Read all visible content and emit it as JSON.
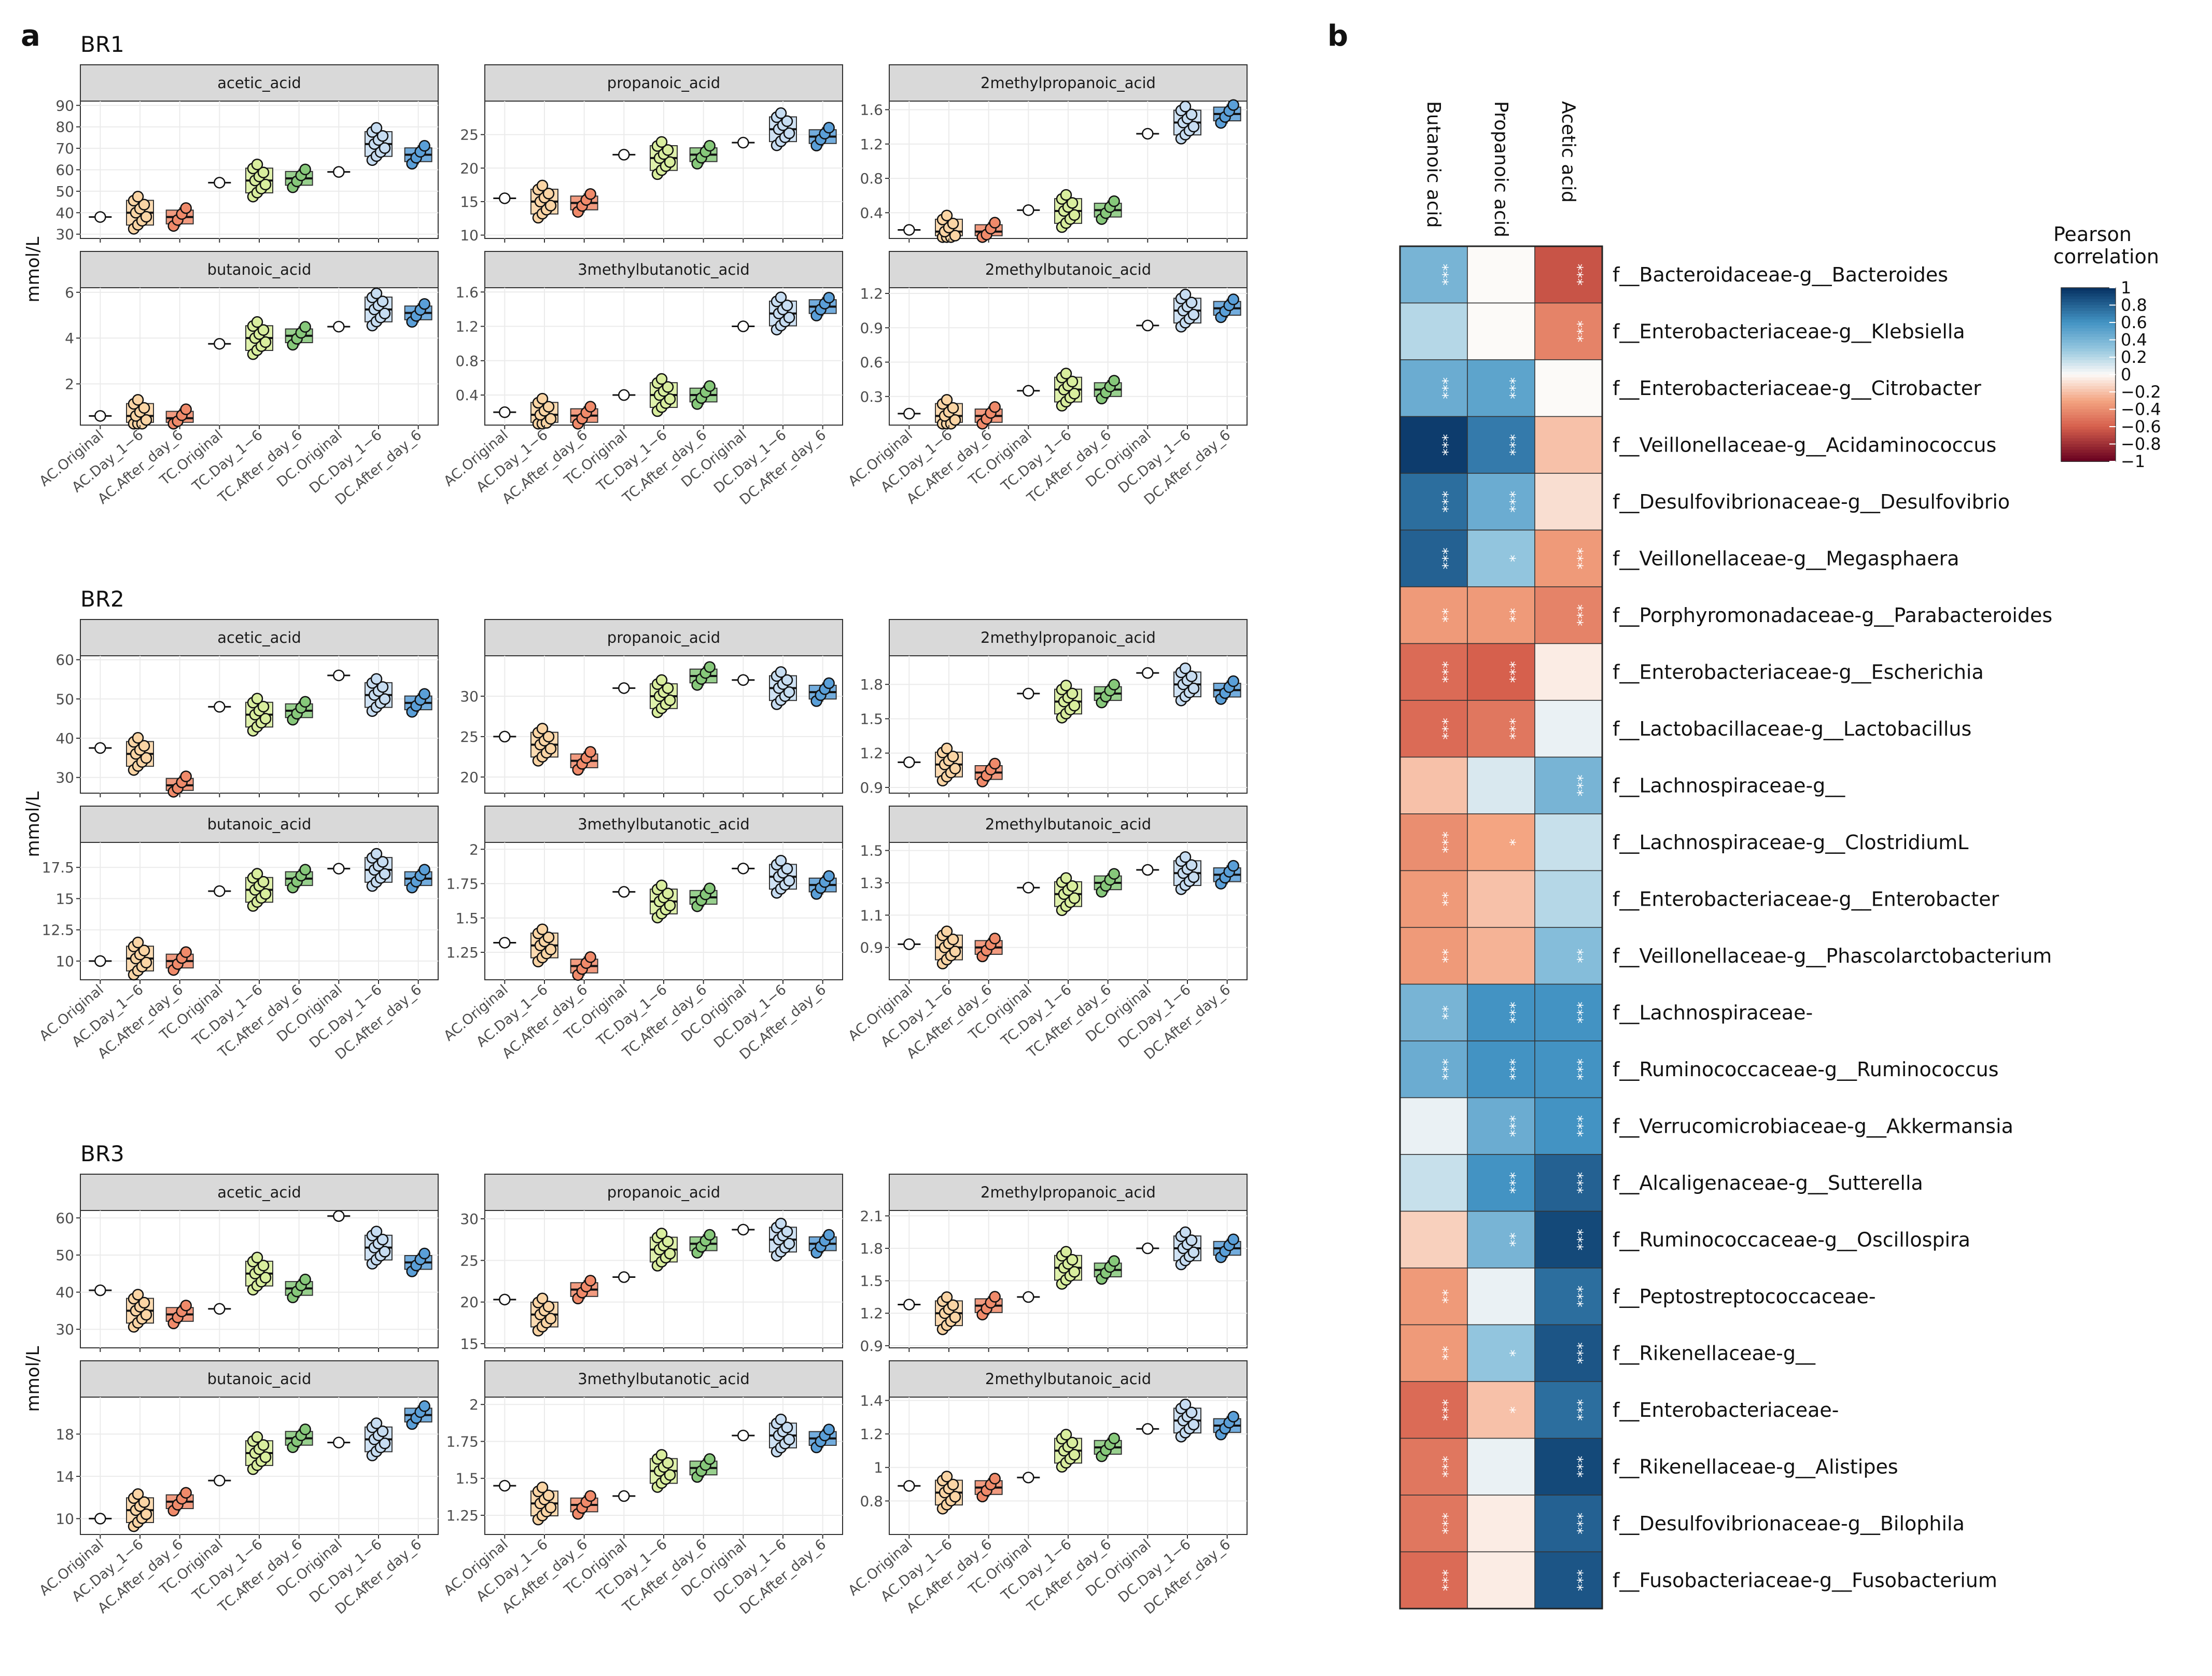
{
  "panel_labels": {
    "a": "a",
    "b": "b"
  },
  "y_axis_label": "mmol/L",
  "x_categories": [
    "AC.Original",
    "AC.Day_1−6",
    "AC.After_day_6",
    "TC.Original",
    "TC.Day_1−6",
    "TC.After_day_6",
    "DC.Original",
    "DC.Day_1−6",
    "DC.After_day_6"
  ],
  "group_colors": [
    "#ffffff",
    "#fbd5a5",
    "#f08a6a",
    "#ffffff",
    "#d9ee9e",
    "#86c87a",
    "#ffffff",
    "#c7ddf2",
    "#5a9fd8"
  ],
  "chart_data": [
    {
      "type": "box",
      "title": "BR1",
      "ylabel": "mmol/L",
      "facets": [
        {
          "name": "acetic_acid",
          "ylim": [
            28,
            92
          ],
          "yticks": [
            30,
            40,
            50,
            60,
            70,
            80,
            90
          ],
          "medians": [
            38,
            40,
            38,
            54,
            55,
            56,
            59,
            72,
            67
          ]
        },
        {
          "name": "propanoic_acid",
          "ylim": [
            9.5,
            30
          ],
          "yticks": [
            10,
            15,
            20,
            25
          ],
          "medians": [
            15.5,
            15,
            14.8,
            22,
            21.5,
            22,
            23.8,
            25.8,
            24.7
          ]
        },
        {
          "name": "2methylpropanoic_acid",
          "ylim": [
            0.1,
            1.7
          ],
          "yticks": [
            0.4,
            0.8,
            1.2,
            1.6
          ],
          "medians": [
            0.2,
            0.18,
            0.18,
            0.43,
            0.42,
            0.43,
            1.32,
            1.45,
            1.55
          ]
        },
        {
          "name": "butanoic_acid",
          "ylim": [
            0.2,
            6.2
          ],
          "yticks": [
            2,
            4,
            6
          ],
          "medians": [
            0.6,
            0.6,
            0.5,
            3.75,
            4.0,
            4.1,
            4.5,
            5.25,
            5.1
          ]
        },
        {
          "name": "3methylbutanotic_acid",
          "ylim": [
            0.05,
            1.65
          ],
          "yticks": [
            0.4,
            0.8,
            1.2,
            1.6
          ],
          "medians": [
            0.2,
            0.17,
            0.16,
            0.4,
            0.4,
            0.4,
            1.2,
            1.35,
            1.43
          ]
        },
        {
          "name": "2methylbutanoic_acid",
          "ylim": [
            0.05,
            1.25
          ],
          "yticks": [
            0.3,
            0.6,
            0.9,
            1.2
          ],
          "medians": [
            0.15,
            0.13,
            0.13,
            0.35,
            0.36,
            0.36,
            0.92,
            1.05,
            1.07
          ]
        }
      ]
    },
    {
      "type": "box",
      "title": "BR2",
      "ylabel": "mmol/L",
      "facets": [
        {
          "name": "acetic_acid",
          "ylim": [
            26,
            61
          ],
          "yticks": [
            30,
            40,
            50,
            60
          ],
          "medians": [
            37.5,
            36,
            28,
            48,
            46,
            47,
            56,
            51,
            49
          ]
        },
        {
          "name": "propanoic_acid",
          "ylim": [
            18,
            35
          ],
          "yticks": [
            20,
            25,
            30
          ],
          "medians": [
            25,
            24,
            22,
            31,
            30,
            32.5,
            32,
            31,
            30.5
          ]
        },
        {
          "name": "2methylpropanoic_acid",
          "ylim": [
            0.85,
            2.05
          ],
          "yticks": [
            0.9,
            1.2,
            1.5,
            1.8
          ],
          "medians": [
            1.12,
            1.1,
            1.03,
            1.72,
            1.65,
            1.72,
            1.9,
            1.8,
            1.75
          ]
        },
        {
          "name": "butanoic_acid",
          "ylim": [
            8.5,
            19.5
          ],
          "yticks": [
            10.0,
            12.5,
            15.0,
            17.5
          ],
          "medians": [
            10,
            10.2,
            10,
            15.6,
            15.7,
            16.6,
            17.4,
            17.3,
            16.6
          ]
        },
        {
          "name": "3methylbutanotic_acid",
          "ylim": [
            1.05,
            2.05
          ],
          "yticks": [
            1.25,
            1.5,
            1.75,
            2.0
          ],
          "medians": [
            1.32,
            1.3,
            1.15,
            1.69,
            1.62,
            1.65,
            1.86,
            1.8,
            1.74
          ]
        },
        {
          "name": "2methylbutanoic_acid",
          "ylim": [
            0.7,
            1.55
          ],
          "yticks": [
            0.9,
            1.1,
            1.3,
            1.5
          ],
          "medians": [
            0.92,
            0.9,
            0.9,
            1.27,
            1.23,
            1.3,
            1.38,
            1.36,
            1.35
          ]
        }
      ]
    },
    {
      "type": "box",
      "title": "BR3",
      "ylabel": "mmol/L",
      "facets": [
        {
          "name": "acetic_acid",
          "ylim": [
            25,
            62
          ],
          "yticks": [
            30,
            40,
            50,
            60
          ],
          "medians": [
            40.5,
            35,
            34,
            35.5,
            45,
            41,
            60.5,
            52,
            48
          ]
        },
        {
          "name": "propanoic_acid",
          "ylim": [
            14.5,
            31
          ],
          "yticks": [
            15,
            20,
            25,
            30
          ],
          "medians": [
            20.3,
            18.5,
            21.5,
            23,
            26.3,
            27,
            28.7,
            27.5,
            27
          ]
        },
        {
          "name": "2methylpropanoic_acid",
          "ylim": [
            0.88,
            2.15
          ],
          "yticks": [
            0.9,
            1.2,
            1.5,
            1.8,
            2.1
          ],
          "medians": [
            1.28,
            1.2,
            1.27,
            1.35,
            1.62,
            1.6,
            1.8,
            1.8,
            1.8
          ]
        },
        {
          "name": "butanoic_acid",
          "ylim": [
            8.5,
            21.5
          ],
          "yticks": [
            10,
            14,
            18
          ],
          "medians": [
            10,
            10.8,
            11.6,
            13.6,
            16.2,
            17.6,
            17.2,
            17.5,
            19.8
          ]
        },
        {
          "name": "3methylbutanotic_acid",
          "ylim": [
            1.12,
            2.05
          ],
          "yticks": [
            1.25,
            1.5,
            1.75,
            2.0
          ],
          "medians": [
            1.45,
            1.33,
            1.32,
            1.38,
            1.55,
            1.57,
            1.79,
            1.79,
            1.77
          ]
        },
        {
          "name": "2methylbutanoic_acid",
          "ylim": [
            0.6,
            1.42
          ],
          "yticks": [
            0.8,
            1.0,
            1.2,
            1.4
          ],
          "medians": [
            0.89,
            0.85,
            0.88,
            0.94,
            1.1,
            1.12,
            1.23,
            1.28,
            1.25
          ]
        }
      ]
    },
    {
      "type": "heatmap",
      "columns": [
        "Butanoic acid",
        "Propanoic acid",
        "Acetic acid"
      ],
      "rows": [
        {
          "label": "f__Bacteroidaceae-g__Bacteroides",
          "values": [
            0.4,
            0.0,
            -0.65
          ],
          "stars": [
            "***",
            "",
            "***"
          ]
        },
        {
          "label": "f__Enterobacteriaceae-g__Klebsiella",
          "values": [
            0.2,
            0.0,
            -0.45
          ],
          "stars": [
            "",
            "",
            "***"
          ]
        },
        {
          "label": "f__Enterobacteriaceae-g__Citrobacter",
          "values": [
            0.45,
            0.5,
            0.0
          ],
          "stars": [
            "***",
            "***",
            ""
          ]
        },
        {
          "label": "f__Veillonellaceae-g__Acidaminococcus",
          "values": [
            0.95,
            0.7,
            -0.2
          ],
          "stars": [
            "***",
            "***",
            ""
          ]
        },
        {
          "label": "f__Desulfovibrionaceae-g__Desulfovibrio",
          "values": [
            0.75,
            0.45,
            -0.1
          ],
          "stars": [
            "***",
            "***",
            ""
          ]
        },
        {
          "label": "f__Veillonellaceae-g__Megasphaera",
          "values": [
            0.8,
            0.3,
            -0.35
          ],
          "stars": [
            "***",
            "*",
            "***"
          ]
        },
        {
          "label": "f__Porphyromonadaceae-g__Parabacteroides",
          "values": [
            -0.35,
            -0.35,
            -0.45
          ],
          "stars": [
            "**",
            "**",
            "***"
          ]
        },
        {
          "label": "f__Enterobacteriaceae-g__Escherichia",
          "values": [
            -0.55,
            -0.6,
            -0.05
          ],
          "stars": [
            "***",
            "***",
            ""
          ]
        },
        {
          "label": "f__Lactobacillaceae-g__Lactobacillus",
          "values": [
            -0.55,
            -0.5,
            0.05
          ],
          "stars": [
            "***",
            "***",
            ""
          ]
        },
        {
          "label": "f__Lachnospiraceae-g__",
          "values": [
            -0.2,
            0.1,
            0.4
          ],
          "stars": [
            "",
            "",
            "***"
          ]
        },
        {
          "label": "f__Lachnospiraceae-g__ClostridiumL",
          "values": [
            -0.4,
            -0.3,
            0.15
          ],
          "stars": [
            "***",
            "*",
            ""
          ]
        },
        {
          "label": "f__Enterobacteriaceae-g__Enterobacter",
          "values": [
            -0.35,
            -0.2,
            0.2
          ],
          "stars": [
            "**",
            "",
            ""
          ]
        },
        {
          "label": "f__Veillonellaceae-g__Phascolarctobacterium",
          "values": [
            -0.35,
            -0.25,
            0.35
          ],
          "stars": [
            "**",
            "",
            "**"
          ]
        },
        {
          "label": "f__Lachnospiraceae-",
          "values": [
            0.4,
            0.6,
            0.6
          ],
          "stars": [
            "**",
            "***",
            "***"
          ]
        },
        {
          "label": "f__Ruminococcaceae-g__Ruminococcus",
          "values": [
            0.45,
            0.6,
            0.6
          ],
          "stars": [
            "***",
            "***",
            "***"
          ]
        },
        {
          "label": "f__Verrucomicrobiaceae-g__Akkermansia",
          "values": [
            0.05,
            0.45,
            0.6
          ],
          "stars": [
            "",
            "***",
            "***"
          ]
        },
        {
          "label": "f__Alcaligenaceae-g__Sutterella",
          "values": [
            0.15,
            0.6,
            0.8
          ],
          "stars": [
            "",
            "***",
            "***"
          ]
        },
        {
          "label": "f__Ruminococcaceae-g__Oscillospira",
          "values": [
            -0.15,
            0.4,
            0.9
          ],
          "stars": [
            "",
            "**",
            "***"
          ]
        },
        {
          "label": "f__Peptostreptococcaceae-",
          "values": [
            -0.35,
            0.05,
            0.75
          ],
          "stars": [
            "**",
            "",
            "***"
          ]
        },
        {
          "label": "f__Rikenellaceae-g__",
          "values": [
            -0.35,
            0.3,
            0.85
          ],
          "stars": [
            "**",
            "*",
            "***"
          ]
        },
        {
          "label": "f__Enterobacteriaceae-",
          "values": [
            -0.55,
            -0.2,
            0.75
          ],
          "stars": [
            "***",
            "*",
            "***"
          ]
        },
        {
          "label": "f__Rikenellaceae-g__Alistipes",
          "values": [
            -0.5,
            0.05,
            0.9
          ],
          "stars": [
            "***",
            "",
            "***"
          ]
        },
        {
          "label": "f__Desulfovibrionaceae-g__Bilophila",
          "values": [
            -0.5,
            -0.05,
            0.8
          ],
          "stars": [
            "***",
            "",
            "***"
          ]
        },
        {
          "label": "f__Fusobacteriaceae-g__Fusobacterium",
          "values": [
            -0.55,
            -0.05,
            0.85
          ],
          "stars": [
            "***",
            "",
            "***"
          ]
        }
      ],
      "legend": {
        "title_line1": "Pearson",
        "title_line2": "correlation",
        "ticks": [
          "1",
          "0.8",
          "0.6",
          "0.4",
          "0.2",
          "0",
          "−0.2",
          "−0.4",
          "−0.6",
          "−0.8",
          "−1"
        ],
        "range": [
          -1,
          1
        ]
      }
    }
  ]
}
